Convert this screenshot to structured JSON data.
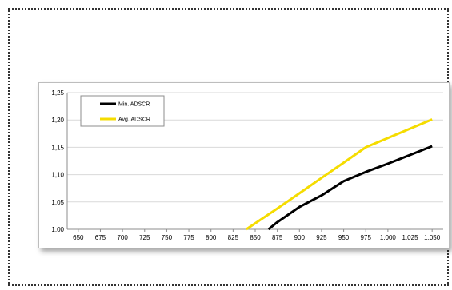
{
  "chart_data": {
    "type": "line",
    "title": "",
    "xlabel": "",
    "ylabel": "",
    "x": [
      650,
      675,
      700,
      725,
      750,
      775,
      800,
      825,
      850,
      875,
      900,
      925,
      950,
      975,
      1000,
      1025,
      1050
    ],
    "x_tick_labels": [
      "650",
      "675",
      "700",
      "725",
      "750",
      "775",
      "800",
      "825",
      "850",
      "875",
      "900",
      "925",
      "950",
      "975",
      "1.000",
      "1.025",
      "1.050"
    ],
    "y_tick_values": [
      1.0,
      1.05,
      1.1,
      1.15,
      1.2,
      1.25
    ],
    "y_tick_labels": [
      "1,00",
      "1,05",
      "1,10",
      "1,15",
      "1,20",
      "1,25"
    ],
    "ylim": [
      1.0,
      1.25
    ],
    "grid": "horizontal",
    "legend_position": "top-left",
    "series": [
      {
        "name": "Min. ADSCR",
        "color": "#000000",
        "points": [
          [
            865,
            1.0
          ],
          [
            875,
            1.013
          ],
          [
            900,
            1.041
          ],
          [
            925,
            1.062
          ],
          [
            950,
            1.088
          ],
          [
            975,
            1.105
          ],
          [
            1000,
            1.12
          ],
          [
            1025,
            1.136
          ],
          [
            1050,
            1.152
          ]
        ]
      },
      {
        "name": "Avg. ADSCR",
        "color": "#f5dc00",
        "points": [
          [
            840,
            1.0
          ],
          [
            850,
            1.011
          ],
          [
            875,
            1.038
          ],
          [
            900,
            1.066
          ],
          [
            925,
            1.094
          ],
          [
            950,
            1.122
          ],
          [
            975,
            1.15
          ],
          [
            1000,
            1.167
          ],
          [
            1025,
            1.184
          ],
          [
            1050,
            1.201
          ]
        ]
      }
    ]
  }
}
